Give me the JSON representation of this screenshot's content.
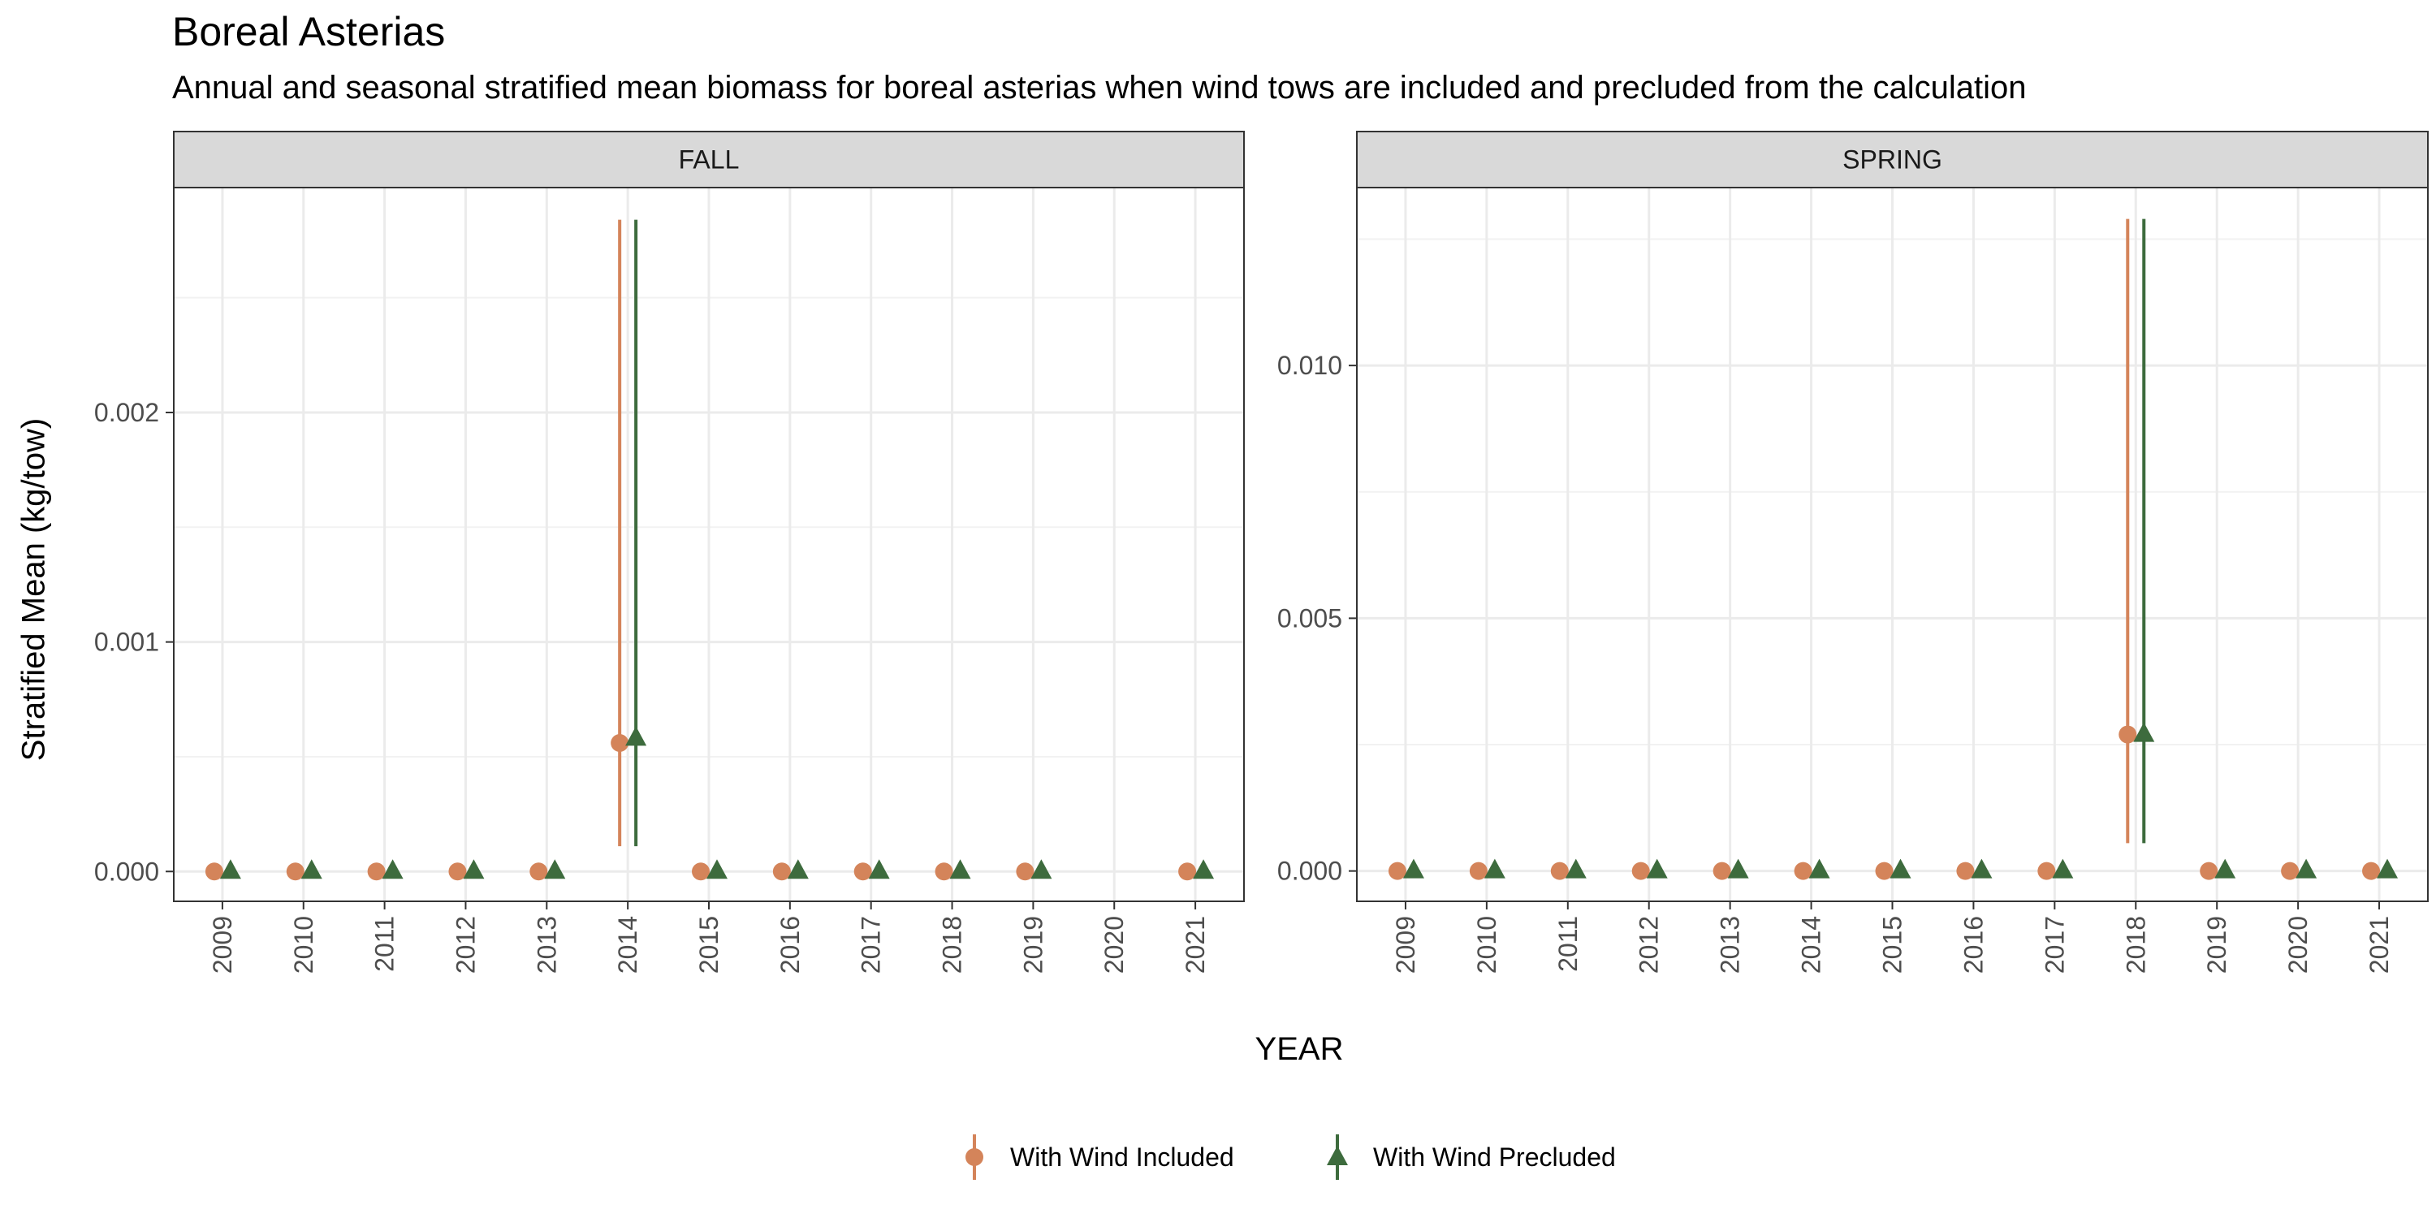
{
  "colors": {
    "included": "#D4845A",
    "precluded": "#3D6B3D"
  },
  "chart_data": {
    "type": "scatter",
    "title": "Boreal Asterias",
    "subtitle": "Annual and seasonal stratified mean biomass for boreal asterias when wind tows are included and precluded from the calculation",
    "xlabel": "YEAR",
    "ylabel": "Stratified Mean (kg/tow)",
    "grid": true,
    "legend_position": "bottom",
    "legend": [
      {
        "name": "With Wind Included",
        "color": "#D4845A",
        "marker": "circle"
      },
      {
        "name": "With Wind Precluded",
        "color": "#3D6B3D",
        "marker": "triangle"
      }
    ],
    "panels": [
      {
        "name": "FALL",
        "x_ticks": [
          "2009",
          "2010",
          "2011",
          "2012",
          "2013",
          "2014",
          "2015",
          "2016",
          "2017",
          "2018",
          "2019",
          "2020",
          "2021"
        ],
        "y_ticks": [
          "0.000",
          "0.001",
          "0.002"
        ],
        "y_tick_values": [
          0,
          0.001,
          0.002
        ],
        "ylim": [
          -0.00013,
          0.00298
        ],
        "series": [
          {
            "name": "With Wind Included",
            "x": [
              2009,
              2010,
              2011,
              2012,
              2013,
              2014,
              2015,
              2016,
              2017,
              2018,
              2019,
              2021
            ],
            "y": [
              0,
              0,
              0,
              0,
              0,
              0.00056,
              0,
              0,
              0,
              0,
              0,
              0
            ],
            "ymin": [
              0,
              0,
              0,
              0,
              0,
              0.00011,
              0,
              0,
              0,
              0,
              0,
              0
            ],
            "ymax": [
              0,
              0,
              0,
              0,
              0,
              0.00284,
              0,
              0,
              0,
              0,
              0,
              0
            ]
          },
          {
            "name": "With Wind Precluded",
            "x": [
              2009,
              2010,
              2011,
              2012,
              2013,
              2014,
              2015,
              2016,
              2017,
              2018,
              2019,
              2021
            ],
            "y": [
              0,
              0,
              0,
              0,
              0,
              0.00058,
              0,
              0,
              0,
              0,
              0,
              0
            ],
            "ymin": [
              0,
              0,
              0,
              0,
              0,
              0.00011,
              0,
              0,
              0,
              0,
              0,
              0
            ],
            "ymax": [
              0,
              0,
              0,
              0,
              0,
              0.00284,
              0,
              0,
              0,
              0,
              0,
              0
            ]
          }
        ]
      },
      {
        "name": "SPRING",
        "x_ticks": [
          "2009",
          "2010",
          "2011",
          "2012",
          "2013",
          "2014",
          "2015",
          "2016",
          "2017",
          "2018",
          "2019",
          "2020",
          "2021"
        ],
        "y_ticks": [
          "0.000",
          "0.005",
          "0.010"
        ],
        "y_tick_values": [
          0,
          0.005,
          0.01
        ],
        "ylim": [
          -0.0006,
          0.01352
        ],
        "series": [
          {
            "name": "With Wind Included",
            "x": [
              2009,
              2010,
              2011,
              2012,
              2013,
              2014,
              2015,
              2016,
              2017,
              2018,
              2019,
              2020,
              2021
            ],
            "y": [
              0,
              0,
              0,
              0,
              0,
              0,
              0,
              0,
              0,
              0.0027,
              0,
              0,
              0
            ],
            "ymin": [
              0,
              0,
              0,
              0,
              0,
              0,
              0,
              0,
              0,
              0.00055,
              0,
              0,
              0
            ],
            "ymax": [
              0,
              0,
              0,
              0,
              0,
              0,
              0,
              0,
              0,
              0.0129,
              0,
              0,
              0
            ]
          },
          {
            "name": "With Wind Precluded",
            "x": [
              2009,
              2010,
              2011,
              2012,
              2013,
              2014,
              2015,
              2016,
              2017,
              2018,
              2019,
              2020,
              2021
            ],
            "y": [
              0,
              0,
              0,
              0,
              0,
              0,
              0,
              0,
              0,
              0.0027,
              0,
              0,
              0
            ],
            "ymin": [
              0,
              0,
              0,
              0,
              0,
              0,
              0,
              0,
              0,
              0.00055,
              0,
              0,
              0
            ],
            "ymax": [
              0,
              0,
              0,
              0,
              0,
              0,
              0,
              0,
              0,
              0.0129,
              0,
              0,
              0
            ]
          }
        ]
      }
    ]
  }
}
